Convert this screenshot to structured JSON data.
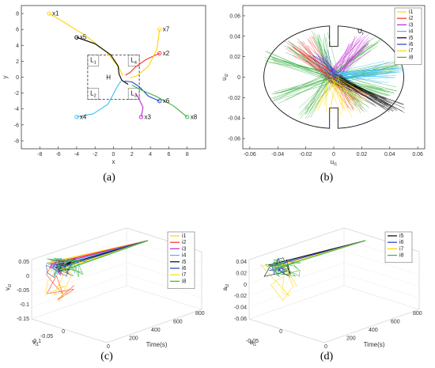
{
  "captions": {
    "a": "(a)",
    "b": "(b)",
    "c": "(c)",
    "d": "(d)"
  },
  "chart_data": [
    {
      "id": "a",
      "type": "line",
      "title": "",
      "xlabel": "x",
      "ylabel": "y",
      "xlim": [
        -10,
        10
      ],
      "ylim": [
        -9,
        9
      ],
      "xticks": [
        -8,
        -6,
        -4,
        -2,
        0,
        2,
        4,
        6,
        8
      ],
      "yticks": [
        -8,
        -6,
        -4,
        -2,
        0,
        2,
        4,
        6,
        8
      ],
      "grid": false,
      "series": [
        {
          "name": "x1",
          "color": "#ffd500",
          "points": [
            [
              -7,
              8
            ],
            [
              -5.5,
              7
            ],
            [
              -3,
              5.2
            ],
            [
              -0.8,
              3.2
            ],
            [
              0.6,
              1.2
            ],
            [
              1,
              0.2
            ]
          ]
        },
        {
          "name": "x2",
          "color": "#ff2a2a",
          "points": [
            [
              5,
              3
            ],
            [
              3.5,
              2.2
            ],
            [
              2.4,
              1.3
            ],
            [
              1.8,
              0.6
            ],
            [
              1.3,
              0.25
            ]
          ]
        },
        {
          "name": "x3",
          "color": "#c026d3",
          "points": [
            [
              3,
              -5
            ],
            [
              3.2,
              -3.8
            ],
            [
              2.8,
              -2.8
            ],
            [
              2.4,
              -2
            ]
          ]
        },
        {
          "name": "x4",
          "color": "#38bdf8",
          "points": [
            [
              -4,
              -5
            ],
            [
              -2.2,
              -4.6
            ],
            [
              -0.6,
              -3.4
            ],
            [
              0.4,
              -1.2
            ],
            [
              0.8,
              -0.5
            ]
          ]
        },
        {
          "name": "x5",
          "color": "#000000",
          "points": [
            [
              -4,
              5
            ],
            [
              -2,
              4.2
            ],
            [
              -0.3,
              2.8
            ],
            [
              0.5,
              1.4
            ],
            [
              0.6,
              0.4
            ],
            [
              0.9,
              -0.4
            ],
            [
              1.6,
              -0.9
            ]
          ]
        },
        {
          "name": "x6",
          "color": "#1d3fd1",
          "points": [
            [
              5,
              -3
            ],
            [
              3.8,
              -2.4
            ],
            [
              2.8,
              -1.2
            ],
            [
              2,
              -0.6
            ],
            [
              1.2,
              -0.5
            ]
          ]
        },
        {
          "name": "x7",
          "color": "#ffd500",
          "points": [
            [
              5,
              6
            ],
            [
              4.7,
              3.5
            ],
            [
              3.8,
              1.4
            ],
            [
              2.6,
              0.2
            ],
            [
              1.8,
              -0.1
            ]
          ]
        },
        {
          "name": "x8",
          "color": "#3cb043",
          "points": [
            [
              8,
              -5
            ],
            [
              6.5,
              -3.6
            ],
            [
              4.6,
              -2.4
            ],
            [
              3,
              -1.6
            ],
            [
              2,
              -1
            ]
          ]
        }
      ],
      "annotations": [
        {
          "text": "x1",
          "x": -7,
          "y": 8
        },
        {
          "text": "x2",
          "x": 5,
          "y": 3
        },
        {
          "text": "x3",
          "x": 3,
          "y": -5
        },
        {
          "text": "x4",
          "x": -4,
          "y": -5
        },
        {
          "text": "x5",
          "x": -4,
          "y": 5
        },
        {
          "text": "x6",
          "x": 5,
          "y": -3
        },
        {
          "text": "x7",
          "x": 5,
          "y": 6
        },
        {
          "text": "x8",
          "x": 8,
          "y": -5
        }
      ],
      "region": {
        "x": [
          -2.8,
          2.8
        ],
        "y": [
          -2.8,
          2.8
        ]
      },
      "subregions": [
        {
          "label": "L1",
          "x": [
            -2.8,
            -1.6
          ],
          "y": [
            1.4,
            2.8
          ]
        },
        {
          "label": "L2",
          "x": [
            -2.8,
            -1.6
          ],
          "y": [
            -2.8,
            -1.4
          ]
        },
        {
          "label": "L3",
          "x": [
            1.6,
            2.8
          ],
          "y": [
            -2.8,
            -1.4
          ]
        },
        {
          "label": "L4",
          "x": [
            1.6,
            2.8
          ],
          "y": [
            1.4,
            2.8
          ]
        }
      ],
      "center_label": {
        "text": "H",
        "x": -0.3,
        "y": 0
      }
    },
    {
      "id": "b",
      "type": "line",
      "title": "",
      "xlabel": "ui1",
      "ylabel": "ui2",
      "xlim": [
        -0.065,
        0.065
      ],
      "ylim": [
        -0.07,
        0.07
      ],
      "xticks": [
        -0.06,
        -0.04,
        -0.02,
        0,
        0.02,
        0.04,
        0.06
      ],
      "yticks": [
        -0.06,
        -0.04,
        -0.02,
        0,
        0.02,
        0.04,
        0.06
      ],
      "xtick_labels": [
        "-0.06",
        "-0.04",
        "-0.02",
        "0",
        "0.02",
        "0.04",
        "0.06"
      ],
      "ytick_labels": [
        "-0.06",
        "-0.04",
        "-0.02",
        "0",
        "0.02",
        "0.04",
        "0.06"
      ],
      "legend": [
        "i1",
        "i2",
        "i3",
        "i4",
        "i5",
        "i6",
        "i7",
        "i8"
      ],
      "legend_colors": [
        "#ffd500",
        "#ff2a2a",
        "#c026d3",
        "#38bdf8",
        "#000000",
        "#1d3fd1",
        "#ffd500",
        "#3cb043"
      ],
      "legend_position": "top-right",
      "region_label": "Ui",
      "bundles": [
        {
          "series": "i8",
          "color": "#3cb043",
          "from": [
            0.0,
            0.0
          ],
          "fan": [
            [
              -0.045,
              0.02
            ],
            [
              -0.04,
              -0.02
            ],
            [
              -0.02,
              -0.035
            ],
            [
              0.02,
              -0.03
            ],
            [
              0.04,
              -0.015
            ],
            [
              0.045,
              0.01
            ],
            [
              0.03,
              0.035
            ],
            [
              -0.01,
              0.04
            ],
            [
              -0.03,
              0.03
            ]
          ]
        },
        {
          "series": "i2",
          "color": "#ff2a2a",
          "from": [
            0.0,
            0.0
          ],
          "fan": [
            [
              -0.03,
              0.032
            ],
            [
              -0.02,
              0.035
            ],
            [
              -0.025,
              0.025
            ],
            [
              0.015,
              -0.028
            ],
            [
              0.02,
              -0.02
            ]
          ]
        },
        {
          "series": "i3",
          "color": "#c026d3",
          "from": [
            0.0,
            0.0
          ],
          "fan": [
            [
              0.02,
              0.04
            ],
            [
              0.025,
              0.03
            ],
            [
              0.015,
              0.035
            ]
          ]
        },
        {
          "series": "i4",
          "color": "#38bdf8",
          "from": [
            0.0,
            0.0
          ],
          "fan": [
            [
              0.045,
              0.005
            ],
            [
              0.04,
              0.01
            ],
            [
              0.035,
              0.0
            ]
          ]
        },
        {
          "series": "i5",
          "color": "#000000",
          "from": [
            0.0,
            0.0
          ],
          "fan": [
            [
              0.045,
              -0.03
            ],
            [
              0.04,
              -0.028
            ],
            [
              0.035,
              -0.025
            ]
          ]
        },
        {
          "series": "i6",
          "color": "#1d3fd1",
          "from": [
            0.0,
            0.0
          ],
          "fan": [
            [
              -0.01,
              0.025
            ],
            [
              -0.015,
              0.02
            ]
          ]
        },
        {
          "series": "i7",
          "color": "#ffd500",
          "from": [
            0.0,
            0.0
          ],
          "fan": [
            [
              0.012,
              -0.035
            ],
            [
              -0.008,
              -0.03
            ],
            [
              0.02,
              -0.022
            ]
          ]
        }
      ]
    },
    {
      "id": "c",
      "type": "line",
      "title": "",
      "xlabel": "vi1",
      "ylabel": "vi2",
      "zlabel": "Time(s)",
      "axis_ticks": {
        "v_vertical": [
          "0.05",
          "0",
          "-0.05",
          "-0.1",
          "-0.15"
        ],
        "v_depth": [
          "0",
          "-0.05",
          "-0.1"
        ],
        "time": [
          "0",
          "200",
          "400",
          "600",
          "800"
        ]
      },
      "legend": [
        "i1",
        "i2",
        "i3",
        "i4",
        "i5",
        "i6",
        "i7",
        "i8"
      ],
      "legend_colors": [
        "#ffd500",
        "#ff2a2a",
        "#c026d3",
        "#38bdf8",
        "#000000",
        "#1d3fd1",
        "#ffd500",
        "#3cb043"
      ],
      "legend_position": "top-right",
      "converge_value": [
        0,
        0
      ]
    },
    {
      "id": "d",
      "type": "line",
      "title": "",
      "xlabel": "ai1",
      "ylabel": "ai2",
      "zlabel": "Time(s)",
      "axis_ticks": {
        "a_vertical": [
          "0.04",
          "0.02",
          "0",
          "-0.02",
          "-0.04",
          "-0.06"
        ],
        "a_depth": [
          "0",
          "-0.05"
        ],
        "time": [
          "0",
          "200",
          "400",
          "600",
          "800"
        ]
      },
      "legend": [
        "i5",
        "i6",
        "i7",
        "i8"
      ],
      "legend_colors": [
        "#000000",
        "#1d3fd1",
        "#ffd500",
        "#3cb043"
      ],
      "legend_position": "top-right",
      "converge_value": [
        0,
        0
      ]
    }
  ]
}
